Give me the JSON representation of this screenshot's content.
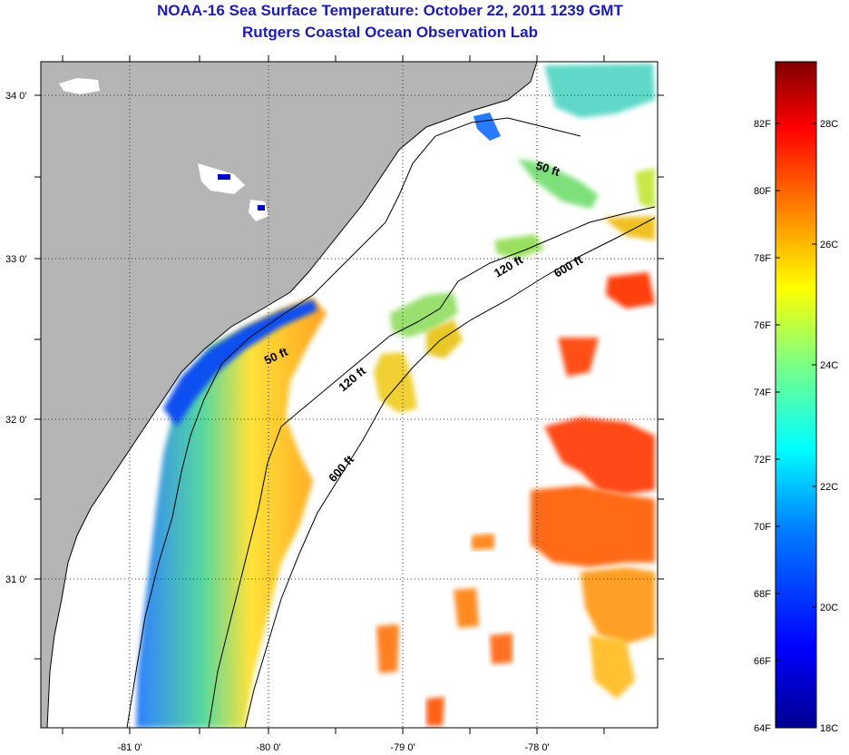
{
  "title": "NOAA-16 Sea Surface Temperature:  October 22, 2011 1239 GMT",
  "subtitle": "Rutgers Coastal Ocean Observation Lab",
  "map": {
    "lat_labels": [
      "34 0'",
      "33 0'",
      "32 0'",
      "31 0'"
    ],
    "lon_labels": [
      "-81 0'",
      "-80 0'",
      "-79 0'",
      "-78 0'"
    ],
    "land_color": "#b5b5b5",
    "coast_color": "#000000",
    "isobaths": [
      {
        "label": "50 ft"
      },
      {
        "label": "50 ft"
      },
      {
        "label": "120 ft"
      },
      {
        "label": "120 ft"
      },
      {
        "label": "600 ft"
      },
      {
        "label": "600 ft"
      }
    ]
  },
  "colorbar": {
    "fahrenheit_labels": [
      "82F",
      "80F",
      "78F",
      "76F",
      "74F",
      "72F",
      "70F",
      "68F",
      "66F",
      "64F"
    ],
    "celsius_labels": [
      "28C",
      "26C",
      "24C",
      "22C",
      "20C",
      "18C"
    ],
    "colors": [
      "#00008f",
      "#0000ff",
      "#0080ff",
      "#00ffff",
      "#80ff80",
      "#ffff00",
      "#ff8000",
      "#ff0000",
      "#800000"
    ]
  }
}
